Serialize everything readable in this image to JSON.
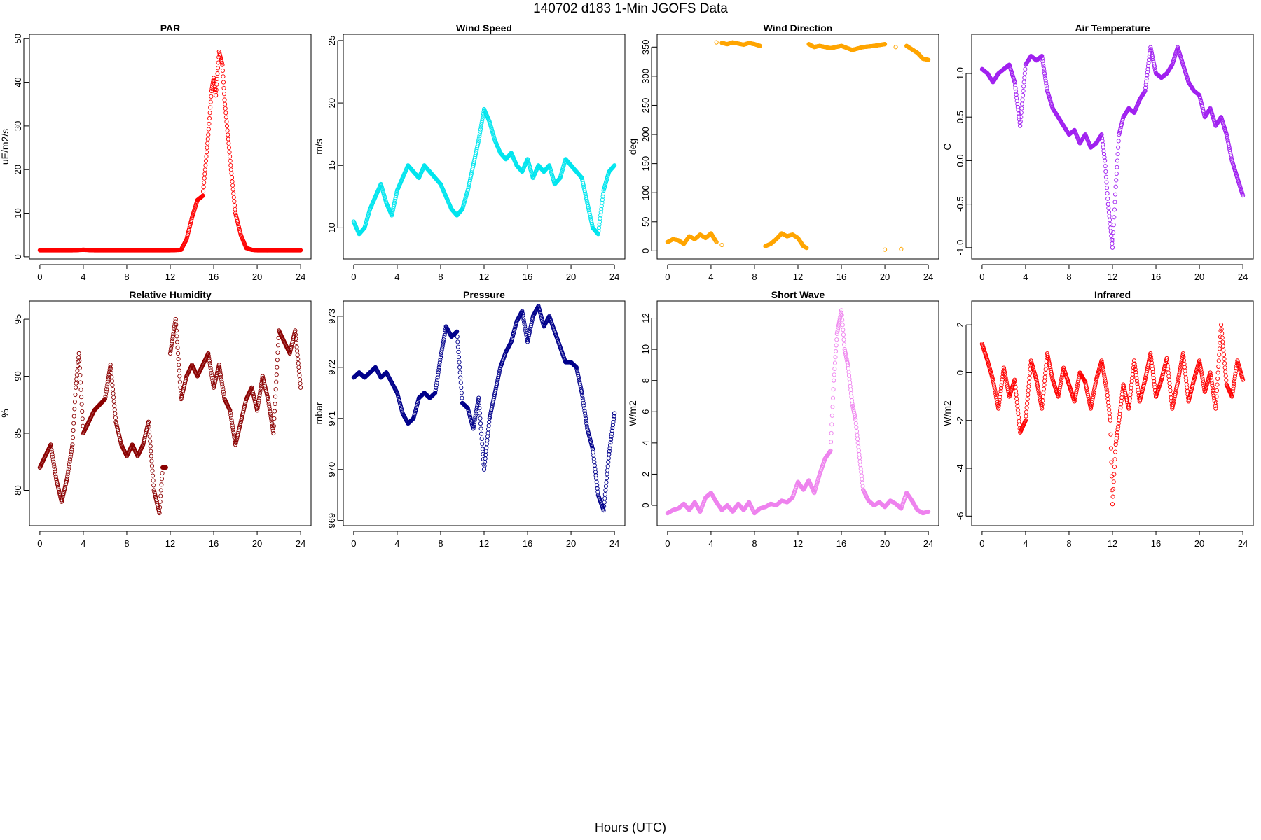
{
  "figure": {
    "title": "140702   d183   1-Min  JGOFS Data",
    "xlabel": "Hours (UTC)"
  },
  "chart_data": [
    {
      "type": "scatter",
      "title": "PAR",
      "ylabel": "uE/m2/s",
      "color": "#ff0000",
      "xlim": [
        -0.96,
        24.96
      ],
      "ylim": [
        -0.5,
        51
      ],
      "xticks": [
        0,
        4,
        8,
        12,
        16,
        20,
        24
      ],
      "yticks": [
        0,
        10,
        20,
        30,
        40,
        50
      ],
      "series": [
        {
          "x": [
            0,
            1,
            2,
            3,
            4,
            5,
            6,
            7,
            8,
            9,
            10,
            11,
            12,
            13,
            13.5,
            14,
            14.5,
            15,
            15.5,
            15.8,
            16,
            16.2,
            16.5,
            16.8,
            17,
            17.3,
            17.6,
            18,
            18.5,
            19,
            19.5,
            20,
            21,
            22,
            23,
            24
          ],
          "y": [
            1.5,
            1.5,
            1.5,
            1.5,
            1.6,
            1.5,
            1.5,
            1.5,
            1.5,
            1.5,
            1.5,
            1.5,
            1.5,
            1.6,
            4,
            9,
            13,
            14,
            28,
            38,
            41,
            37,
            47,
            44,
            36,
            28,
            20,
            10,
            5,
            2,
            1.6,
            1.5,
            1.5,
            1.5,
            1.5,
            1.5
          ]
        }
      ]
    },
    {
      "type": "scatter",
      "title": "Wind Speed",
      "ylabel": "m/s",
      "color": "#00e5ee",
      "xlim": [
        -0.96,
        24.96
      ],
      "ylim": [
        7.5,
        25.5
      ],
      "xticks": [
        0,
        4,
        8,
        12,
        16,
        20,
        24
      ],
      "yticks": [
        10,
        15,
        20,
        25
      ],
      "series": [
        {
          "x": [
            0,
            0.5,
            1,
            1.5,
            2,
            2.5,
            3,
            3.5,
            4,
            4.5,
            5,
            5.5,
            6,
            6.5,
            7,
            7.5,
            8,
            8.5,
            9,
            9.5,
            10,
            10.5,
            11,
            11.5,
            12,
            12.5,
            13,
            13.5,
            14,
            14.5,
            15,
            15.5,
            16,
            16.5,
            17,
            17.5,
            18,
            18.5,
            19,
            19.5,
            20,
            20.5,
            21,
            21.5,
            22,
            22.5,
            23,
            23.5,
            24
          ],
          "y": [
            10.5,
            9.5,
            10,
            11.5,
            12.5,
            13.5,
            12,
            11,
            13,
            14,
            15,
            14.5,
            14,
            15,
            14.5,
            14,
            13.5,
            12.5,
            11.5,
            11,
            11.5,
            13,
            15,
            17,
            19.5,
            18.5,
            17,
            16,
            15.5,
            16,
            15,
            14.5,
            15.5,
            14,
            15,
            14.5,
            15,
            13.5,
            14,
            15.5,
            15,
            14.5,
            14,
            12,
            10,
            9.5,
            13,
            14.5,
            15
          ]
        }
      ]
    },
    {
      "type": "scatter",
      "title": "Wind Direction",
      "ylabel": "deg",
      "color": "#ffa500",
      "xlim": [
        -0.96,
        24.96
      ],
      "ylim": [
        -14,
        372
      ],
      "xticks": [
        0,
        4,
        8,
        12,
        16,
        20,
        24
      ],
      "yticks": [
        0,
        50,
        100,
        150,
        200,
        250,
        300,
        350
      ],
      "series": [
        {
          "x": [
            0,
            0.5,
            1,
            1.5,
            2,
            2.5,
            3,
            3.5,
            4,
            4.5,
            5,
            4.5,
            5,
            5.5,
            6,
            6.5,
            7,
            7.5,
            8,
            8.5,
            9,
            9.5,
            10,
            10.5,
            11,
            11.5,
            12,
            12.5,
            12.8,
            13,
            13.5,
            14,
            15,
            16,
            17,
            18,
            19,
            20,
            21,
            22,
            23,
            23.5,
            24,
            20,
            21.5
          ],
          "y": [
            15,
            20,
            18,
            12,
            25,
            20,
            28,
            22,
            30,
            15,
            10,
            358,
            357,
            355,
            358,
            356,
            354,
            357,
            355,
            352,
            8,
            12,
            20,
            30,
            25,
            28,
            22,
            8,
            5,
            355,
            350,
            352,
            348,
            352,
            345,
            350,
            352,
            355,
            350,
            352,
            340,
            330,
            328,
            2,
            3
          ]
        }
      ]
    },
    {
      "type": "scatter",
      "title": "Air Temperature",
      "ylabel": "C",
      "color": "#a020f0",
      "xlim": [
        -0.96,
        24.96
      ],
      "ylim": [
        -1.13,
        1.45
      ],
      "xticks": [
        0,
        4,
        8,
        12,
        16,
        20,
        24
      ],
      "yticks": [
        -1.0,
        -0.5,
        0.0,
        0.5,
        1.0
      ],
      "series": [
        {
          "x": [
            0,
            0.5,
            1,
            1.5,
            2,
            2.5,
            3,
            3.5,
            4,
            4.5,
            5,
            5.5,
            6,
            6.5,
            7,
            7.5,
            8,
            8.5,
            9,
            9.5,
            10,
            10.5,
            11,
            11.3,
            11.6,
            12,
            12.3,
            12.6,
            13,
            13.5,
            14,
            14.5,
            15,
            15.5,
            16,
            16.5,
            17,
            17.5,
            18,
            18.5,
            19,
            19.5,
            20,
            20.5,
            21,
            21.5,
            22,
            22.5,
            23,
            23.5,
            24
          ],
          "y": [
            1.05,
            1.0,
            0.9,
            1.0,
            1.05,
            1.1,
            0.9,
            0.4,
            1.1,
            1.2,
            1.15,
            1.2,
            0.8,
            0.6,
            0.5,
            0.4,
            0.3,
            0.35,
            0.2,
            0.3,
            0.15,
            0.2,
            0.3,
            0.0,
            -0.5,
            -1.0,
            -0.3,
            0.3,
            0.5,
            0.6,
            0.55,
            0.7,
            0.8,
            1.3,
            1.0,
            0.95,
            1.0,
            1.1,
            1.3,
            1.1,
            0.9,
            0.8,
            0.75,
            0.5,
            0.6,
            0.4,
            0.5,
            0.3,
            0.0,
            -0.2,
            -0.4
          ]
        }
      ]
    },
    {
      "type": "scatter",
      "title": "Relative Humidity",
      "ylabel": "%",
      "color": "#8b0000",
      "xlim": [
        -0.96,
        24.96
      ],
      "ylim": [
        76.9,
        96.6
      ],
      "xticks": [
        0,
        4,
        8,
        12,
        16,
        20,
        24
      ],
      "yticks": [
        80,
        85,
        90,
        95
      ],
      "series": [
        {
          "x": [
            0,
            0.5,
            1,
            1.5,
            2,
            2.5,
            3,
            3.3,
            3.6,
            4,
            4.5,
            5,
            5.5,
            6,
            6.5,
            7,
            7.5,
            8,
            8.5,
            9,
            9.5,
            10,
            10.5,
            11,
            11.3,
            11.6,
            12,
            12.5,
            13,
            13.5,
            14,
            14.5,
            15,
            15.5,
            16,
            16.5,
            17,
            17.5,
            18,
            18.5,
            19,
            19.5,
            20,
            20.5,
            21,
            21.5,
            22,
            22.5,
            23,
            23.5,
            24
          ],
          "y": [
            82,
            83,
            84,
            81,
            79,
            81,
            84,
            89,
            92,
            85,
            86,
            87,
            87.5,
            88,
            91,
            86,
            84,
            83,
            84,
            83,
            84,
            86,
            80,
            78,
            82,
            82,
            92,
            95,
            88,
            90,
            91,
            90,
            91,
            92,
            89,
            91,
            88,
            87,
            84,
            86,
            88,
            89,
            87,
            90,
            88,
            85,
            94,
            93,
            92,
            94,
            89
          ]
        }
      ]
    },
    {
      "type": "scatter",
      "title": "Pressure",
      "ylabel": "mbar",
      "color": "#00008b",
      "xlim": [
        -0.96,
        24.96
      ],
      "ylim": [
        968.9,
        973.3
      ],
      "xticks": [
        0,
        4,
        8,
        12,
        16,
        20,
        24
      ],
      "yticks": [
        969,
        970,
        971,
        972,
        973
      ],
      "series": [
        {
          "x": [
            0,
            0.5,
            1,
            1.5,
            2,
            2.5,
            3,
            3.5,
            4,
            4.5,
            5,
            5.5,
            6,
            6.5,
            7,
            7.5,
            8,
            8.5,
            9,
            9.5,
            10,
            10.5,
            11,
            11.5,
            12,
            12.5,
            13,
            13.5,
            14,
            14.5,
            15,
            15.5,
            16,
            16.5,
            17,
            17.5,
            18,
            18.5,
            19,
            19.5,
            20,
            20.5,
            21,
            21.5,
            22,
            22.5,
            23,
            23.5,
            24
          ],
          "y": [
            971.8,
            971.9,
            971.8,
            971.9,
            972.0,
            971.8,
            971.9,
            971.7,
            971.5,
            971.1,
            970.9,
            971.0,
            971.4,
            971.5,
            971.4,
            971.5,
            972.2,
            972.8,
            972.6,
            972.7,
            971.3,
            971.2,
            970.8,
            971.4,
            970.0,
            971.0,
            971.5,
            972.0,
            972.3,
            972.5,
            972.9,
            973.1,
            972.5,
            973.0,
            973.2,
            972.8,
            973.0,
            972.7,
            972.4,
            972.1,
            972.1,
            972.0,
            971.5,
            970.8,
            970.4,
            969.5,
            969.2,
            970.3,
            971.1
          ]
        }
      ]
    },
    {
      "type": "scatter",
      "title": "Short Wave",
      "ylabel": "W/m2",
      "color": "#ee82ee",
      "xlim": [
        -0.96,
        24.96
      ],
      "ylim": [
        -1.3,
        13.1
      ],
      "xticks": [
        0,
        4,
        8,
        12,
        16,
        20,
        24
      ],
      "yticks": [
        0,
        2,
        4,
        6,
        8,
        10,
        12
      ],
      "series": [
        {
          "x": [
            0,
            0.5,
            1,
            1.5,
            2,
            2.5,
            3,
            3.5,
            4,
            4.5,
            5,
            5.5,
            6,
            6.5,
            7,
            7.5,
            8,
            8.5,
            9,
            9.5,
            10,
            10.5,
            11,
            11.5,
            12,
            12.5,
            13,
            13.5,
            14,
            14.5,
            15,
            15.3,
            15.6,
            16,
            16.3,
            16.6,
            17,
            17.3,
            17.6,
            18,
            18.5,
            19,
            19.5,
            20,
            20.5,
            21,
            21.5,
            22,
            22.5,
            23,
            23.5,
            24
          ],
          "y": [
            -0.5,
            -0.3,
            -0.2,
            0.1,
            -0.3,
            0.2,
            -0.4,
            0.5,
            0.8,
            0.2,
            -0.3,
            0.0,
            -0.4,
            0.1,
            -0.3,
            0.2,
            -0.5,
            -0.2,
            -0.1,
            0.1,
            0.0,
            0.3,
            0.2,
            0.5,
            1.5,
            1.0,
            1.6,
            0.8,
            2.0,
            3.0,
            3.5,
            8.0,
            11.0,
            12.5,
            10.0,
            9.0,
            6.5,
            5.5,
            3.5,
            1.0,
            0.3,
            0.0,
            0.2,
            -0.1,
            0.3,
            0.1,
            -0.2,
            0.8,
            0.3,
            -0.3,
            -0.5,
            -0.4
          ]
        }
      ]
    },
    {
      "type": "scatter",
      "title": "Infrared",
      "ylabel": "W/m2",
      "color": "#ff0000",
      "xlim": [
        -0.96,
        24.96
      ],
      "ylim": [
        -6.4,
        3.0
      ],
      "xticks": [
        0,
        4,
        8,
        12,
        16,
        20,
        24
      ],
      "yticks": [
        -6,
        -4,
        -2,
        0,
        2
      ],
      "series": [
        {
          "x": [
            0,
            0.5,
            1,
            1.5,
            2,
            2.5,
            3,
            3.5,
            4,
            4.5,
            5,
            5.5,
            6,
            6.5,
            7,
            7.5,
            8,
            8.5,
            9,
            9.5,
            10,
            10.5,
            11,
            11.5,
            11.8,
            12,
            12.3,
            12.6,
            13,
            13.5,
            14,
            14.5,
            15,
            15.5,
            16,
            16.5,
            17,
            17.5,
            18,
            18.5,
            19,
            19.5,
            20,
            20.5,
            21,
            21.5,
            22,
            22.5,
            23,
            23.5,
            24
          ],
          "y": [
            1.2,
            0.5,
            -0.3,
            -1.5,
            0.2,
            -1.0,
            -0.3,
            -2.5,
            -2.0,
            0.5,
            -0.3,
            -1.5,
            0.8,
            -0.3,
            -1.0,
            0.2,
            -0.5,
            -1.2,
            0.0,
            -0.4,
            -1.5,
            -0.3,
            0.5,
            -0.8,
            -2.0,
            -5.5,
            -3.0,
            -2.0,
            -0.5,
            -1.5,
            0.5,
            -1.2,
            -0.3,
            0.8,
            -1.0,
            -0.3,
            0.6,
            -1.5,
            -0.4,
            0.8,
            -1.2,
            -0.3,
            0.5,
            -0.8,
            0.0,
            -1.5,
            2.0,
            -0.5,
            -1.0,
            0.5,
            -0.3
          ]
        }
      ]
    }
  ]
}
